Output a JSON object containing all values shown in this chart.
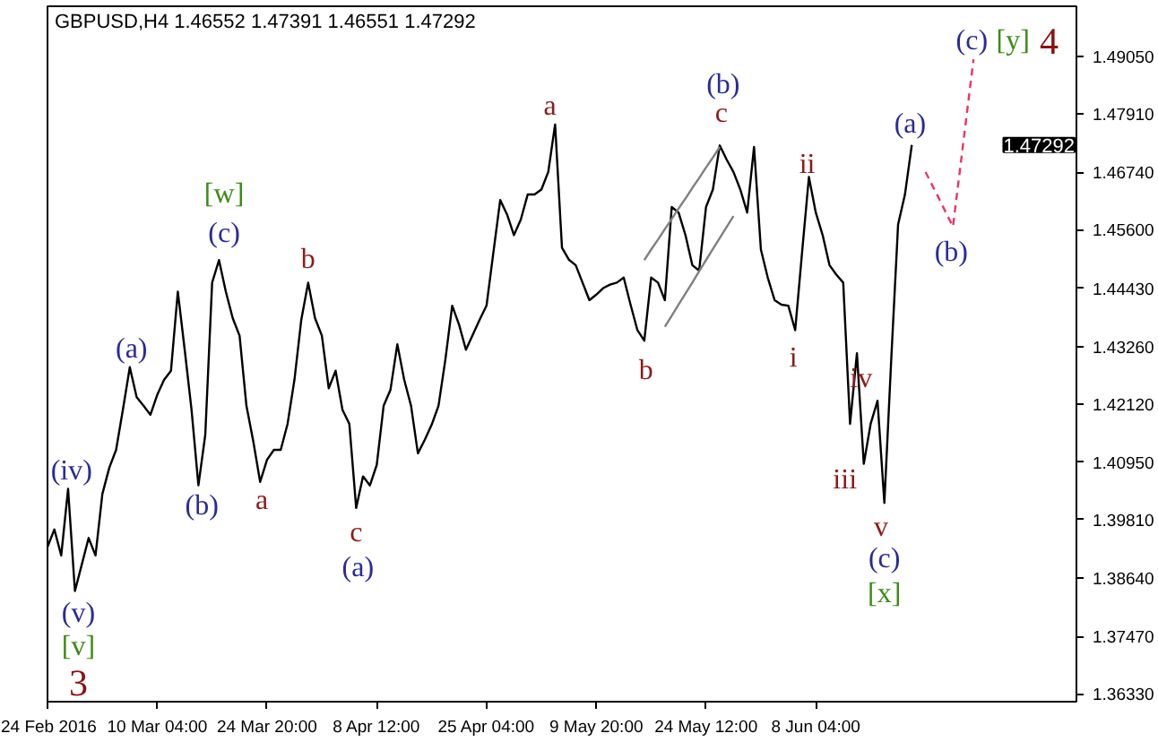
{
  "chart_data": {
    "type": "line",
    "title": "GBPUSD,H4  1.46552 1.47391 1.46551 1.47292",
    "categories": [
      "24 Feb 2016",
      null,
      null,
      null,
      null,
      null,
      null,
      null,
      null,
      null,
      null,
      null,
      null,
      null,
      null,
      null,
      "10 Mar 04:00",
      null,
      null,
      null,
      null,
      null,
      null,
      null,
      null,
      null,
      null,
      null,
      null,
      null,
      null,
      null,
      "24 Mar 20:00",
      null,
      null,
      null,
      null,
      null,
      null,
      null,
      null,
      null,
      null,
      null,
      null,
      null,
      null,
      null,
      "8 Apr 12:00",
      null,
      null,
      null,
      null,
      null,
      null,
      null,
      null,
      null,
      null,
      null,
      null,
      null,
      null,
      null,
      "25 Apr 04:00",
      null,
      null,
      null,
      null,
      null,
      null,
      null,
      null,
      null,
      null,
      null,
      null,
      null,
      null,
      null,
      "9 May 20:00",
      null,
      null,
      null,
      null,
      null,
      null,
      null,
      null,
      null,
      null,
      null,
      null,
      null,
      null,
      null,
      "24 May 12:00",
      null,
      null,
      null,
      null,
      null,
      null,
      null,
      null,
      null,
      null,
      null,
      null,
      null,
      null,
      null,
      "8 Jun 04:00",
      null,
      null,
      null,
      null,
      null,
      null,
      null,
      null,
      null,
      null,
      null,
      null,
      null,
      null,
      null,
      null,
      null,
      null,
      null,
      null,
      null,
      null,
      null,
      null,
      null,
      null,
      null,
      null,
      null,
      null,
      null,
      null,
      null,
      null,
      null,
      null,
      null
    ],
    "ylim": [
      1.3617,
      1.5006
    ],
    "yticks": [
      {
        "value": 1.4905,
        "label": "1.49050"
      },
      {
        "value": 1.4791,
        "label": "1.47910"
      },
      {
        "value": 1.4674,
        "label": "1.46740"
      },
      {
        "value": 1.456,
        "label": "1.45600"
      },
      {
        "value": 1.4443,
        "label": "1.44430"
      },
      {
        "value": 1.4326,
        "label": "1.43260"
      },
      {
        "value": 1.4212,
        "label": "1.42120"
      },
      {
        "value": 1.4095,
        "label": "1.40950"
      },
      {
        "value": 1.3981,
        "label": "1.39810"
      },
      {
        "value": 1.3864,
        "label": "1.38640"
      },
      {
        "value": 1.3747,
        "label": "1.37470"
      },
      {
        "value": 1.3633,
        "label": "1.36330"
      }
    ],
    "series": [
      {
        "color": "#000000",
        "line_style": "solid",
        "values": [
          1.3926,
          1.3961,
          1.3909,
          1.4042,
          1.3838,
          1.3891,
          1.3944,
          1.3909,
          1.4032,
          1.4084,
          1.412,
          1.4201,
          1.4285,
          1.4225,
          1.4208,
          1.419,
          1.423,
          1.426,
          1.4278,
          1.4436,
          1.432,
          1.42,
          1.4049,
          1.415,
          1.4454,
          1.4499,
          1.4436,
          1.4383,
          1.4348,
          1.4208,
          1.4137,
          1.4056,
          1.41,
          1.412,
          1.412,
          1.4172,
          1.426,
          1.438,
          1.4454,
          1.4383,
          1.4348,
          1.4243,
          1.4278,
          1.42,
          1.4172,
          1.4004,
          1.4067,
          1.4049,
          1.409,
          1.4208,
          1.424,
          1.4331,
          1.426,
          1.4208,
          1.4113,
          1.414,
          1.417,
          1.4208,
          1.43,
          1.4408,
          1.437,
          1.432,
          1.435,
          1.438,
          1.4408,
          1.4514,
          1.4619,
          1.459,
          1.4549,
          1.458,
          1.463,
          1.463,
          1.464,
          1.4675,
          1.477,
          1.4524,
          1.45,
          1.4489,
          1.4454,
          1.4419,
          1.443,
          1.4443,
          1.445,
          1.4454,
          1.4464,
          1.441,
          1.4359,
          1.4338,
          1.4464,
          1.4454,
          1.4419,
          1.4605,
          1.4594,
          1.4549,
          1.4489,
          1.4478,
          1.4605,
          1.464,
          1.4728,
          1.47,
          1.4675,
          1.464,
          1.4594,
          1.4725,
          1.452,
          1.4464,
          1.4419,
          1.441,
          1.4408,
          1.4359,
          1.4514,
          1.4665,
          1.4594,
          1.4549,
          1.4489,
          1.447,
          1.4454,
          1.4172,
          1.4313,
          1.4092,
          1.4172,
          1.4218,
          1.4014,
          1.43,
          1.457,
          1.463,
          1.4729,
          null,
          null,
          null,
          null,
          null,
          null,
          null,
          null,
          null,
          null,
          null,
          null,
          null,
          null,
          null,
          null,
          null,
          null,
          null,
          null,
          null,
          null,
          null
        ]
      },
      {
        "color": "#808080",
        "line_style": "solid",
        "values": [
          null,
          null,
          null,
          null,
          null,
          null,
          null,
          null,
          null,
          null,
          null,
          null,
          null,
          null,
          null,
          null,
          null,
          null,
          null,
          null,
          null,
          null,
          null,
          null,
          null,
          null,
          null,
          null,
          null,
          null,
          null,
          null,
          null,
          null,
          null,
          null,
          null,
          null,
          null,
          null,
          null,
          null,
          null,
          null,
          null,
          null,
          null,
          null,
          null,
          null,
          null,
          null,
          null,
          null,
          null,
          null,
          null,
          null,
          null,
          null,
          null,
          null,
          null,
          null,
          null,
          null,
          null,
          null,
          null,
          null,
          null,
          null,
          null,
          null,
          null,
          null,
          null,
          null,
          null,
          null,
          null,
          null,
          null,
          null,
          null,
          null,
          null,
          1.4499,
          1.452,
          1.454,
          1.4561,
          1.4581,
          1.4602,
          1.4622,
          1.4643,
          1.4663,
          1.4684,
          1.4704,
          1.4725,
          null,
          null,
          null,
          null,
          null,
          null,
          null,
          null,
          null,
          null,
          null,
          null,
          null,
          null,
          null,
          null,
          null,
          null,
          null,
          null,
          null,
          null,
          null,
          null,
          null,
          null,
          null,
          null,
          null,
          null,
          null,
          null,
          null,
          null,
          null,
          null,
          null,
          null,
          null,
          null,
          null,
          null,
          null,
          null,
          null,
          null,
          null,
          null,
          null,
          null,
          null
        ]
      },
      {
        "color": "#808080",
        "line_style": "solid",
        "values": [
          null,
          null,
          null,
          null,
          null,
          null,
          null,
          null,
          null,
          null,
          null,
          null,
          null,
          null,
          null,
          null,
          null,
          null,
          null,
          null,
          null,
          null,
          null,
          null,
          null,
          null,
          null,
          null,
          null,
          null,
          null,
          null,
          null,
          null,
          null,
          null,
          null,
          null,
          null,
          null,
          null,
          null,
          null,
          null,
          null,
          null,
          null,
          null,
          null,
          null,
          null,
          null,
          null,
          null,
          null,
          null,
          null,
          null,
          null,
          null,
          null,
          null,
          null,
          null,
          null,
          null,
          null,
          null,
          null,
          null,
          null,
          null,
          null,
          null,
          null,
          null,
          null,
          null,
          null,
          null,
          null,
          null,
          null,
          null,
          null,
          null,
          null,
          null,
          null,
          null,
          1.4366,
          1.4388,
          1.441,
          1.4432,
          1.4454,
          1.4477,
          1.4499,
          1.4521,
          1.4543,
          1.4565,
          1.4587,
          null,
          null,
          null,
          null,
          null,
          null,
          null,
          null,
          null,
          null,
          null,
          null,
          null,
          null,
          null,
          null,
          null,
          null,
          null,
          null,
          null,
          null,
          null,
          null,
          null,
          null,
          null,
          null,
          null,
          null,
          null,
          null,
          null,
          null,
          null,
          null,
          null,
          null,
          null,
          null,
          null,
          null,
          null,
          null,
          null,
          null,
          null,
          null,
          null
        ]
      },
      {
        "color": "#ee3366",
        "line_style": "dashed",
        "values": [
          null,
          null,
          null,
          null,
          null,
          null,
          null,
          null,
          null,
          null,
          null,
          null,
          null,
          null,
          null,
          null,
          null,
          null,
          null,
          null,
          null,
          null,
          null,
          null,
          null,
          null,
          null,
          null,
          null,
          null,
          null,
          null,
          null,
          null,
          null,
          null,
          null,
          null,
          null,
          null,
          null,
          null,
          null,
          null,
          null,
          null,
          null,
          null,
          null,
          null,
          null,
          null,
          null,
          null,
          null,
          null,
          null,
          null,
          null,
          null,
          null,
          null,
          null,
          null,
          null,
          null,
          null,
          null,
          null,
          null,
          null,
          null,
          null,
          null,
          null,
          null,
          null,
          null,
          null,
          null,
          null,
          null,
          null,
          null,
          null,
          null,
          null,
          null,
          null,
          null,
          null,
          null,
          null,
          null,
          null,
          null,
          null,
          null,
          null,
          null,
          null,
          null,
          null,
          null,
          null,
          null,
          null,
          null,
          null,
          null,
          null,
          null,
          null,
          null,
          null,
          null,
          null,
          null,
          null,
          null,
          null,
          null,
          null,
          null,
          null,
          null,
          null,
          null,
          1.4675,
          1.4648,
          1.4621,
          1.4593,
          1.4566,
          1.4677,
          1.4789,
          1.49,
          null,
          null,
          null,
          null,
          null,
          null,
          null,
          null,
          null,
          null,
          null,
          null,
          null,
          null
        ]
      }
    ],
    "annotations": [
      "(iv)",
      "(v)",
      "[v]",
      "3",
      "(a)",
      "(b)",
      "[w]",
      "(c)",
      "a",
      "b",
      "c",
      "(a)",
      "a",
      "b",
      "(b)",
      "c",
      "ii",
      "i",
      "iii",
      "iv",
      "v",
      "(c)",
      "[x]",
      "(a)",
      "(b)",
      "(c)",
      "[y]",
      "4",
      "1.47292"
    ]
  }
}
